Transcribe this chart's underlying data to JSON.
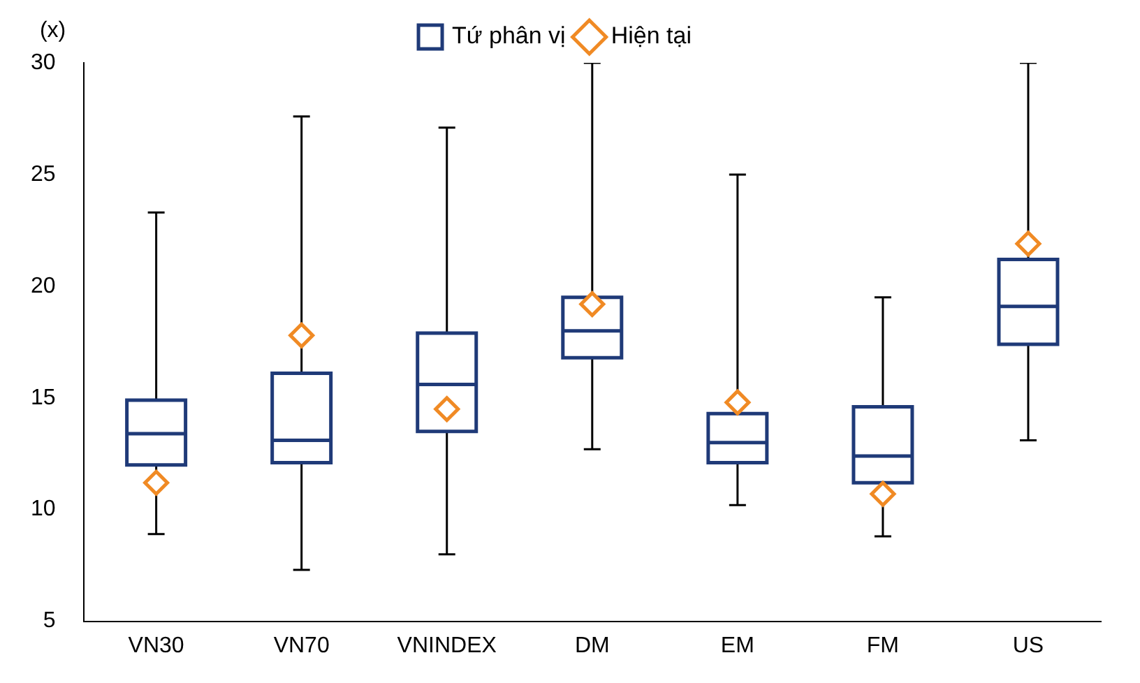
{
  "chart_data": {
    "type": "box",
    "ylabel": "(x)",
    "categories": [
      "VN30",
      "VN70",
      "VNINDEX",
      "DM",
      "EM",
      "FM",
      "US"
    ],
    "series": [
      {
        "name": "Tứ phân vị",
        "color": "#1f3a78",
        "boxes": [
          {
            "low": 8.9,
            "q1": 12.0,
            "median": 13.4,
            "q3": 14.9,
            "high": 23.3
          },
          {
            "low": 7.3,
            "q1": 12.1,
            "median": 13.1,
            "q3": 16.1,
            "high": 27.6
          },
          {
            "low": 8.0,
            "q1": 13.5,
            "median": 15.6,
            "q3": 17.9,
            "high": 27.1
          },
          {
            "low": 12.7,
            "q1": 16.8,
            "median": 18.0,
            "q3": 19.5,
            "high": 30
          },
          {
            "low": 10.2,
            "q1": 12.1,
            "median": 13.0,
            "q3": 14.3,
            "high": 25.0
          },
          {
            "low": 8.8,
            "q1": 11.2,
            "median": 12.4,
            "q3": 14.6,
            "high": 19.5
          },
          {
            "low": 13.1,
            "q1": 17.4,
            "median": 19.1,
            "q3": 21.2,
            "high": 30
          }
        ]
      },
      {
        "name": "Hiện tại",
        "type": "scatter",
        "color": "#f08a24",
        "marker": "diamond",
        "x": [
          "VN30",
          "VN70",
          "VNINDEX",
          "DM",
          "EM",
          "FM",
          "US"
        ],
        "values": [
          11.2,
          17.8,
          14.5,
          19.2,
          14.8,
          10.7,
          21.9
        ]
      }
    ],
    "ylim": [
      5,
      30
    ],
    "yticks": [
      5,
      10,
      15,
      20,
      25,
      30
    ],
    "grid": false,
    "legend": "top"
  }
}
